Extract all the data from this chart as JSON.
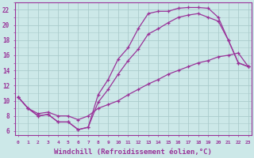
{
  "background_color": "#cce8e8",
  "grid_color": "#aacccc",
  "line_color": "#993399",
  "xlabel": "Windchill (Refroidissement éolien,°C)",
  "xlabel_fontsize": 6.5,
  "ytick_labels": [
    "6",
    "8",
    "10",
    "12",
    "14",
    "16",
    "18",
    "20",
    "22"
  ],
  "ytick_values": [
    6,
    8,
    10,
    12,
    14,
    16,
    18,
    20,
    22
  ],
  "xtick_labels": [
    "0",
    "1",
    "2",
    "3",
    "4",
    "5",
    "6",
    "7",
    "8",
    "9",
    "10",
    "11",
    "12",
    "13",
    "14",
    "15",
    "16",
    "17",
    "18",
    "19",
    "20",
    "21",
    "22",
    "23"
  ],
  "xtick_values": [
    0,
    1,
    2,
    3,
    4,
    5,
    6,
    7,
    8,
    9,
    10,
    11,
    12,
    13,
    14,
    15,
    16,
    17,
    18,
    19,
    20,
    21,
    22,
    23
  ],
  "xlim": [
    -0.3,
    23.3
  ],
  "ylim": [
    5.5,
    23.0
  ],
  "series": [
    {
      "x": [
        0,
        1,
        2,
        3,
        4,
        5,
        6,
        7,
        8,
        9,
        10,
        11,
        12,
        13,
        14,
        15,
        16,
        17,
        18,
        19,
        20,
        21,
        22,
        23
      ],
      "y": [
        10.5,
        9.0,
        8.0,
        8.2,
        7.2,
        7.2,
        6.2,
        6.5,
        10.8,
        12.8,
        15.5,
        17.0,
        19.5,
        21.5,
        21.8,
        21.8,
        22.2,
        22.3,
        22.3,
        22.2,
        21.0,
        18.0,
        15.0,
        14.5
      ]
    },
    {
      "x": [
        0,
        1,
        2,
        3,
        4,
        5,
        6,
        7,
        8,
        9,
        10,
        11,
        12,
        13,
        14,
        15,
        16,
        17,
        18,
        19,
        20,
        21,
        22,
        23
      ],
      "y": [
        10.5,
        9.0,
        8.0,
        8.2,
        7.2,
        7.2,
        6.2,
        6.5,
        9.8,
        11.5,
        13.5,
        15.3,
        16.8,
        18.8,
        19.5,
        20.3,
        21.0,
        21.3,
        21.5,
        21.0,
        20.5,
        18.0,
        15.0,
        14.5
      ]
    },
    {
      "x": [
        0,
        1,
        2,
        3,
        4,
        5,
        6,
        7,
        8,
        9,
        10,
        11,
        12,
        13,
        14,
        15,
        16,
        17,
        18,
        19,
        20,
        21,
        22,
        23
      ],
      "y": [
        10.5,
        9.0,
        8.3,
        8.5,
        8.0,
        8.0,
        7.5,
        8.0,
        9.0,
        9.5,
        10.0,
        10.8,
        11.5,
        12.2,
        12.8,
        13.5,
        14.0,
        14.5,
        15.0,
        15.3,
        15.8,
        16.0,
        16.3,
        14.5
      ]
    }
  ]
}
